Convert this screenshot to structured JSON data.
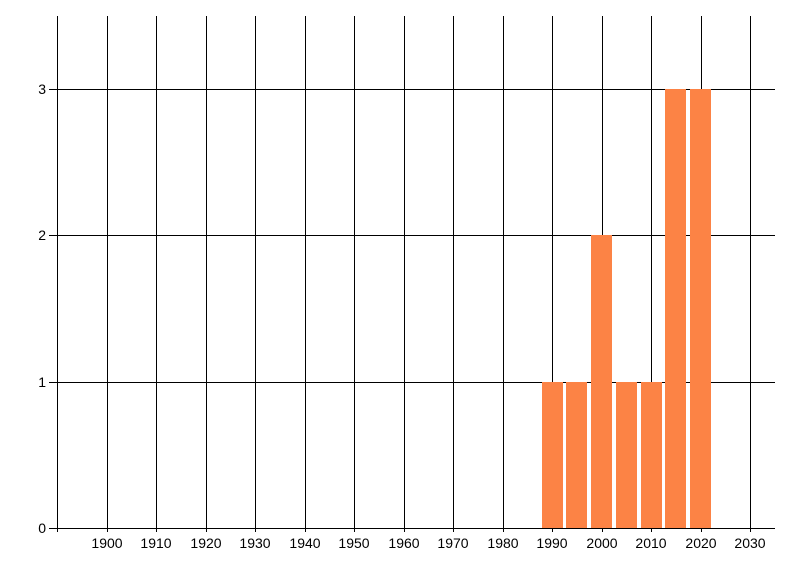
{
  "chart_data": {
    "type": "bar",
    "title": "",
    "x": [
      1990,
      1995,
      2000,
      2005,
      2010,
      2015,
      2020
    ],
    "values": [
      1,
      1,
      2,
      1,
      1,
      3,
      3
    ],
    "bin_years": 5,
    "xlabel": "",
    "ylabel": "",
    "xlim": [
      1890,
      2035
    ],
    "ylim": [
      0,
      3.5
    ],
    "x_gridline_years": [
      1890,
      1900,
      1910,
      1920,
      1930,
      1940,
      1950,
      1960,
      1970,
      1980,
      1990,
      2000,
      2010,
      2020,
      2030
    ],
    "x_tick_years": [
      1900,
      1910,
      1920,
      1930,
      1940,
      1950,
      1960,
      1970,
      1980,
      1990,
      2000,
      2010,
      2020,
      2030
    ],
    "x_tick_labels": [
      "1900",
      "1910",
      "1920",
      "1930",
      "1940",
      "1950",
      "1960",
      "1970",
      "1980",
      "1990",
      "2000",
      "2010",
      "2020",
      "2030"
    ],
    "y_tick_values": [
      0,
      1,
      2,
      3
    ],
    "y_tick_labels": [
      "0",
      "1",
      "2",
      "3"
    ],
    "grid": true,
    "legend": null,
    "bar_color": "#FC8345",
    "grid_color": "#000000",
    "text_color": "#000000",
    "background_color": "#FFFFFF"
  }
}
